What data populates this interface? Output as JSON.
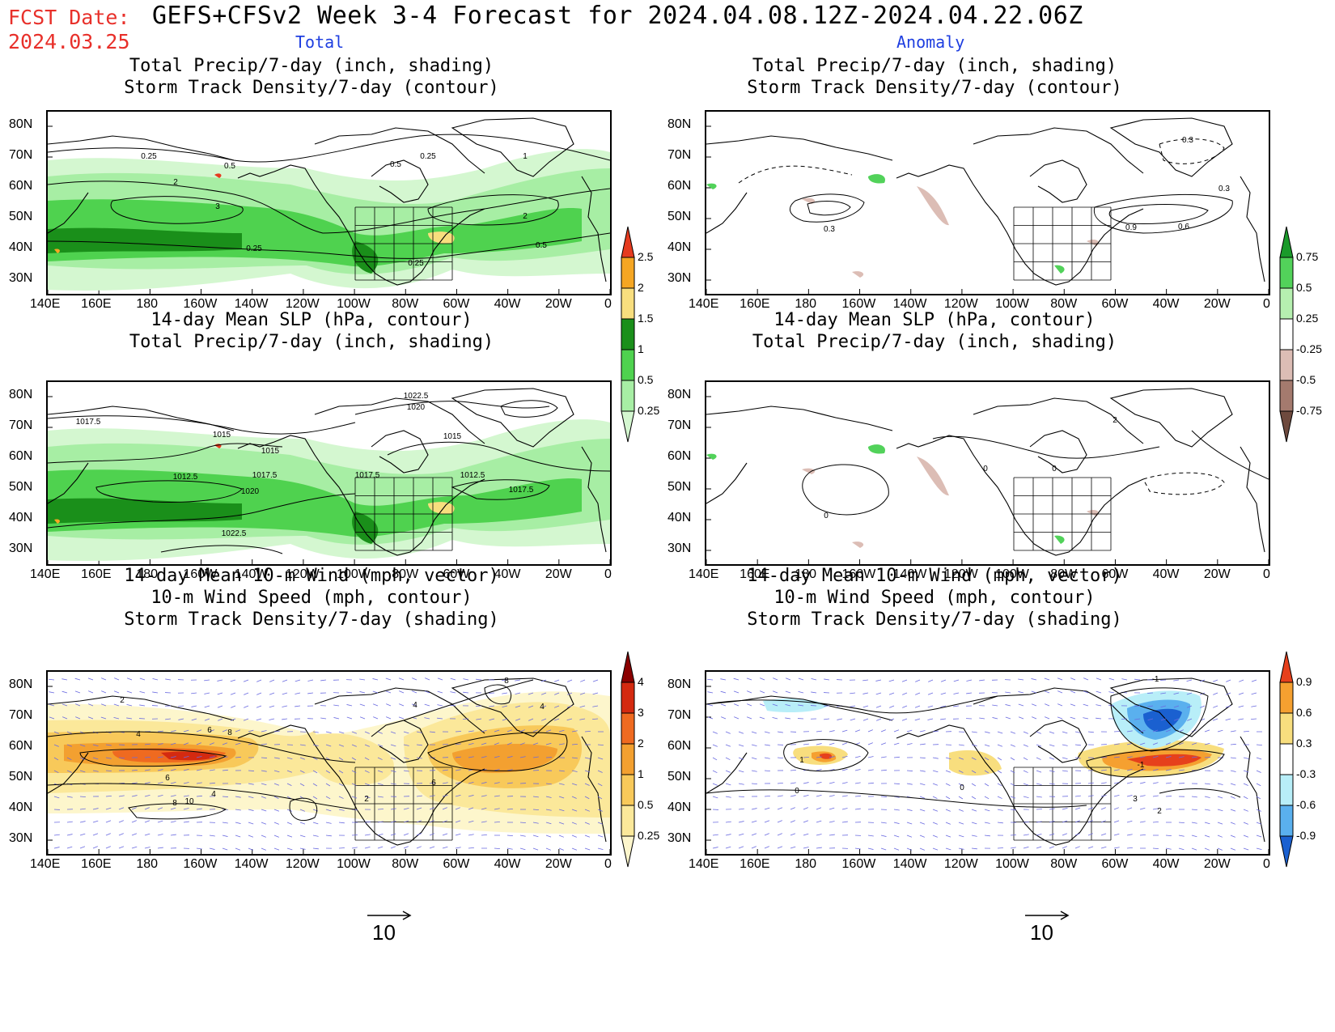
{
  "header": {
    "fcst_label": "FCST Date:",
    "fcst_date": "2024.03.25",
    "title": "GEFS+CFSv2 Week 3-4 Forecast for 2024.04.08.12Z-2024.04.22.06Z",
    "col_total": "Total",
    "col_anomaly": "Anomaly"
  },
  "axes": {
    "lat_labels": [
      "80N",
      "70N",
      "60N",
      "50N",
      "40N",
      "30N"
    ],
    "lon_labels": [
      "140E",
      "160E",
      "180",
      "160W",
      "140W",
      "120W",
      "100W",
      "80W",
      "60W",
      "40W",
      "20W",
      "0"
    ]
  },
  "panels": {
    "p1": {
      "title1": "Total Precip/7-day (inch, shading)",
      "title2": "Storm Track Density/7-day (contour)"
    },
    "p2": {
      "title1": "Total Precip/7-day (inch, shading)",
      "title2": "Storm Track Density/7-day (contour)"
    },
    "p3": {
      "title1": "14-day Mean SLP (hPa, contour)",
      "title2": "Total Precip/7-day (inch, shading)"
    },
    "p4": {
      "title1": "14-day Mean SLP (hPa, contour)",
      "title2": "Total Precip/7-day (inch, shading)"
    },
    "p5": {
      "title1": "14-day Mean 10-m Wind (mph, vector)",
      "title2": "10-m Wind Speed (mph, contour)",
      "title3": "Storm Track Density/7-day (shading)"
    },
    "p6": {
      "title1": "14-day Mean 10-m Wind (mph, vector)",
      "title2": "10-m Wind Speed (mph, contour)",
      "title3": "Storm Track Density/7-day (shading)"
    }
  },
  "colorbars": {
    "precip_total": {
      "labels": [
        "2.5",
        "2",
        "1.5",
        "1",
        "0.5",
        "0.25"
      ],
      "colors": [
        "#e63b1f",
        "#f5a623",
        "#f8de7e",
        "#1a8f1a",
        "#4fd24f",
        "#a7eea4",
        "#d4f7d0"
      ]
    },
    "precip_anom": {
      "labels": [
        "0.75",
        "0.5",
        "0.25",
        "-0.25",
        "-0.5",
        "-0.75"
      ],
      "colors": [
        "#1a9a2a",
        "#52d25a",
        "#b6f0b0",
        "#ffffff",
        "#dcbdb5",
        "#a47a6e",
        "#6e4a3e"
      ]
    },
    "storm_total": {
      "labels": [
        "4",
        "3",
        "2",
        "1",
        "0.5",
        "0.25"
      ],
      "colors": [
        "#8b0000",
        "#d42a10",
        "#ef6a20",
        "#f3a030",
        "#f8c95a",
        "#fbe89a",
        "#fdf6cc"
      ]
    },
    "storm_anom": {
      "labels": [
        "0.9",
        "0.6",
        "0.3",
        "-0.3",
        "-0.6",
        "-0.9"
      ],
      "colors": [
        "#e6401c",
        "#f5a030",
        "#f8de7e",
        "#ffffff",
        "#b8eef8",
        "#5ab0ee",
        "#1a60d0"
      ]
    }
  },
  "contour_labels": {
    "p1": [
      "0.25",
      "0.5",
      "2",
      "3",
      "0.25",
      "0.25",
      "0.5",
      "1",
      "2",
      "0.5",
      "0.25"
    ],
    "p2": [
      "0.3",
      "0.3",
      "0.9",
      "0.6",
      "0.3"
    ],
    "p3": [
      "1017.5",
      "1015",
      "1012.5",
      "1015",
      "1017.5",
      "1020",
      "1022.5",
      "1017.5",
      "1022.5",
      "1020",
      "1015",
      "1012.5",
      "1017.5"
    ],
    "p4": [
      "0",
      "0",
      "2",
      "0"
    ],
    "p5": [
      "4",
      "6",
      "8",
      "2",
      "6",
      "8",
      "10",
      "4",
      "4",
      "6",
      "8",
      "4",
      "2"
    ],
    "p6": [
      "1",
      "0",
      "-1",
      "-1",
      "3",
      "2",
      "0"
    ]
  },
  "reference_vector": {
    "left": "10",
    "right": "10"
  }
}
